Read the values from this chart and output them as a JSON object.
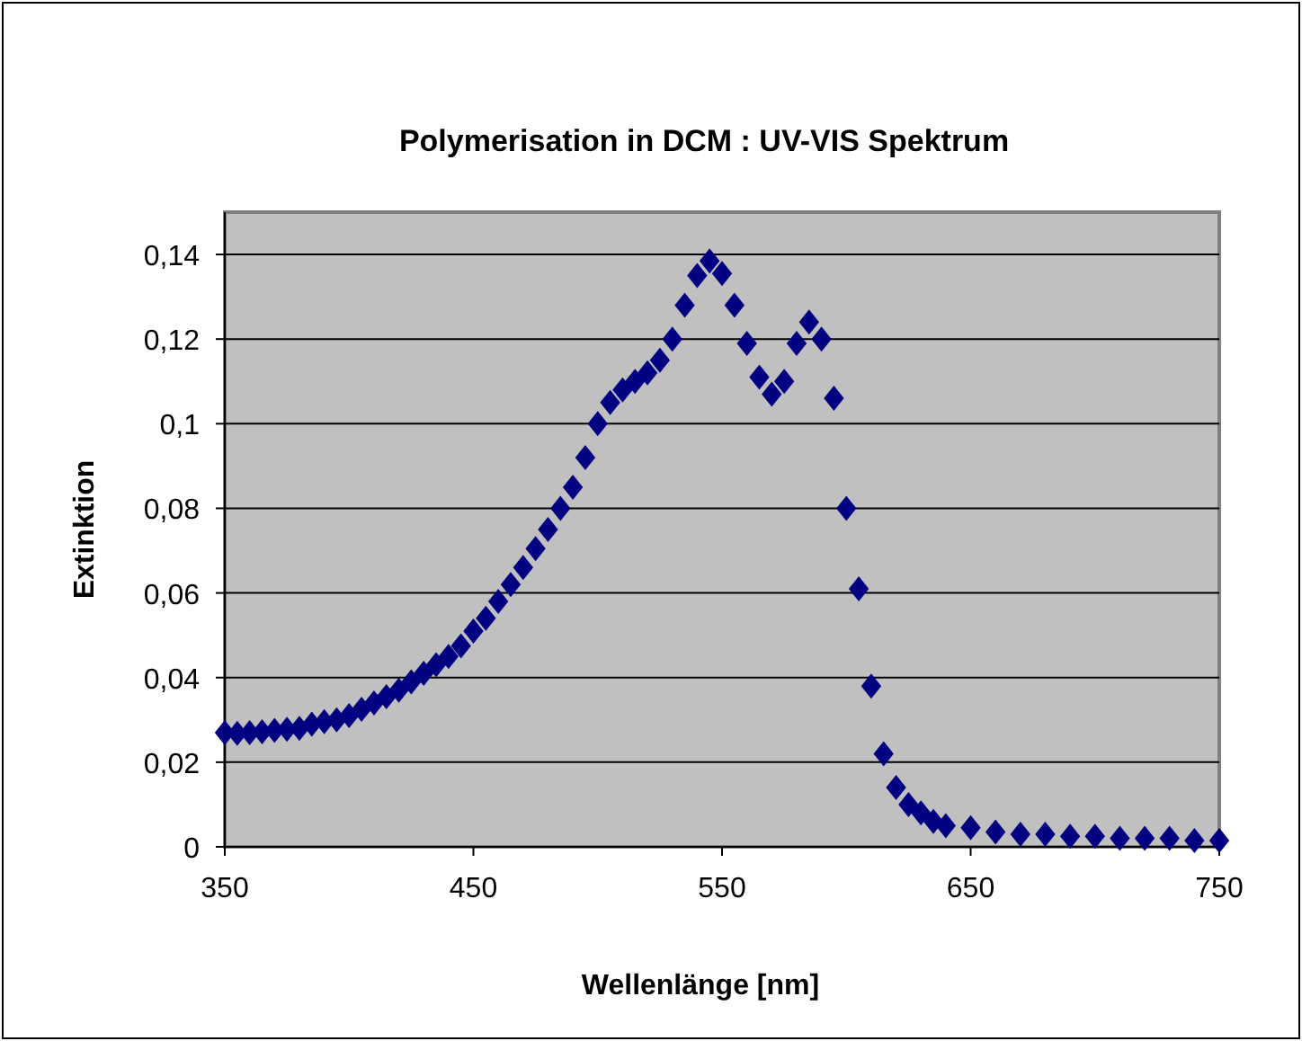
{
  "chart_data": {
    "type": "scatter",
    "title": "Polymerisation in DCM : UV-VIS Spektrum",
    "xlabel": "Wellenlänge [nm]",
    "ylabel": "Extinktion",
    "xlim": [
      350,
      750
    ],
    "xticks": [
      350,
      450,
      550,
      650,
      750
    ],
    "ylim": [
      0,
      0.15
    ],
    "yticks": [
      {
        "value": 0,
        "label": "0"
      },
      {
        "value": 0.02,
        "label": "0,02"
      },
      {
        "value": 0.04,
        "label": "0,04"
      },
      {
        "value": 0.06,
        "label": "0,06"
      },
      {
        "value": 0.08,
        "label": "0,08"
      },
      {
        "value": 0.1,
        "label": "0,1"
      },
      {
        "value": 0.12,
        "label": "0,12"
      },
      {
        "value": 0.14,
        "label": "0,14"
      }
    ],
    "grid": "y",
    "marker": "diamond",
    "series": [
      {
        "color": "#000080",
        "x": [
          350,
          355,
          360,
          365,
          370,
          375,
          380,
          385,
          390,
          395,
          400,
          405,
          410,
          415,
          420,
          425,
          430,
          435,
          440,
          445,
          450,
          455,
          460,
          465,
          470,
          475,
          480,
          485,
          490,
          495,
          500,
          505,
          510,
          515,
          520,
          525,
          530,
          535,
          540,
          545,
          550,
          555,
          560,
          565,
          570,
          575,
          580,
          585,
          590,
          595,
          600,
          605,
          610,
          615,
          620,
          625,
          630,
          635,
          640,
          650,
          660,
          670,
          680,
          690,
          700,
          710,
          720,
          730,
          740,
          750
        ],
        "values": [
          0.027,
          0.0268,
          0.027,
          0.0272,
          0.0275,
          0.0278,
          0.028,
          0.029,
          0.0296,
          0.03,
          0.031,
          0.0325,
          0.034,
          0.0355,
          0.037,
          0.039,
          0.041,
          0.043,
          0.045,
          0.0475,
          0.051,
          0.054,
          0.058,
          0.062,
          0.066,
          0.0705,
          0.075,
          0.08,
          0.085,
          0.092,
          0.1,
          0.105,
          0.108,
          0.11,
          0.112,
          0.115,
          0.12,
          0.128,
          0.135,
          0.1385,
          0.1355,
          0.128,
          0.119,
          0.111,
          0.107,
          0.11,
          0.119,
          0.124,
          0.12,
          0.106,
          0.08,
          0.061,
          0.038,
          0.022,
          0.014,
          0.01,
          0.008,
          0.006,
          0.005,
          0.0045,
          0.0035,
          0.003,
          0.003,
          0.0025,
          0.0025,
          0.002,
          0.002,
          0.002,
          0.0015,
          0.0015
        ]
      }
    ]
  }
}
